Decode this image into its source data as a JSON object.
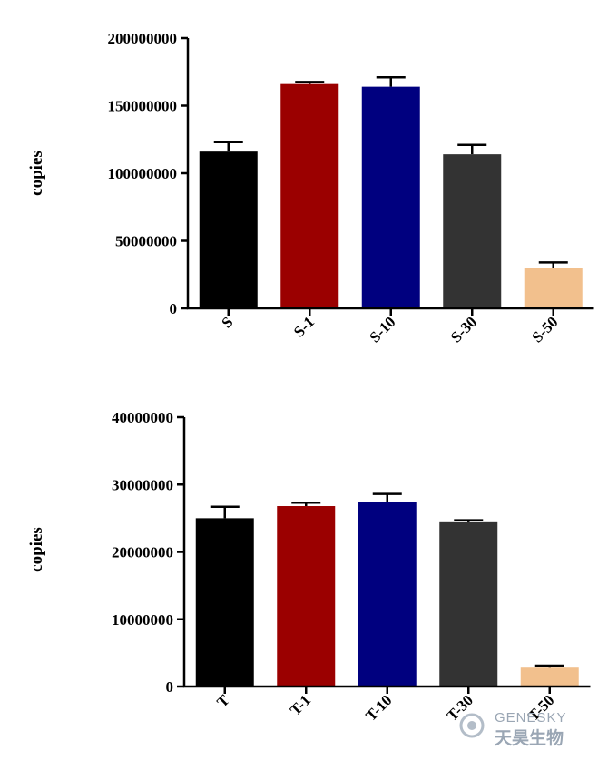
{
  "chart_data": [
    {
      "type": "bar",
      "categories": [
        "S",
        "S-1",
        "S-10",
        "S-30",
        "S-50"
      ],
      "values": [
        116000000,
        166000000,
        164000000,
        114000000,
        30000000
      ],
      "errors": [
        7000000,
        1500000,
        7000000,
        7000000,
        4000000
      ],
      "colors": [
        "#000000",
        "#9b0000",
        "#00007f",
        "#333333",
        "#f2c08d"
      ],
      "ylabel": "copies",
      "ylim": [
        0,
        200000000
      ],
      "yticks": [
        "0",
        "50000000",
        "100000000",
        "150000000",
        "200000000"
      ]
    },
    {
      "type": "bar",
      "categories": [
        "T",
        "T-1",
        "T-10",
        "T-30",
        "T-50"
      ],
      "values": [
        25000000,
        26800000,
        27400000,
        24400000,
        2800000
      ],
      "errors": [
        1700000,
        500000,
        1200000,
        300000,
        300000
      ],
      "colors": [
        "#000000",
        "#9b0000",
        "#00007f",
        "#333333",
        "#f2c08d"
      ],
      "ylabel": "copies",
      "ylim": [
        0,
        40000000
      ],
      "yticks": [
        "0",
        "10000000",
        "20000000",
        "30000000",
        "40000000"
      ]
    }
  ],
  "watermark": {
    "brand_en": "GENESKY",
    "brand_cn": "天昊生物"
  }
}
